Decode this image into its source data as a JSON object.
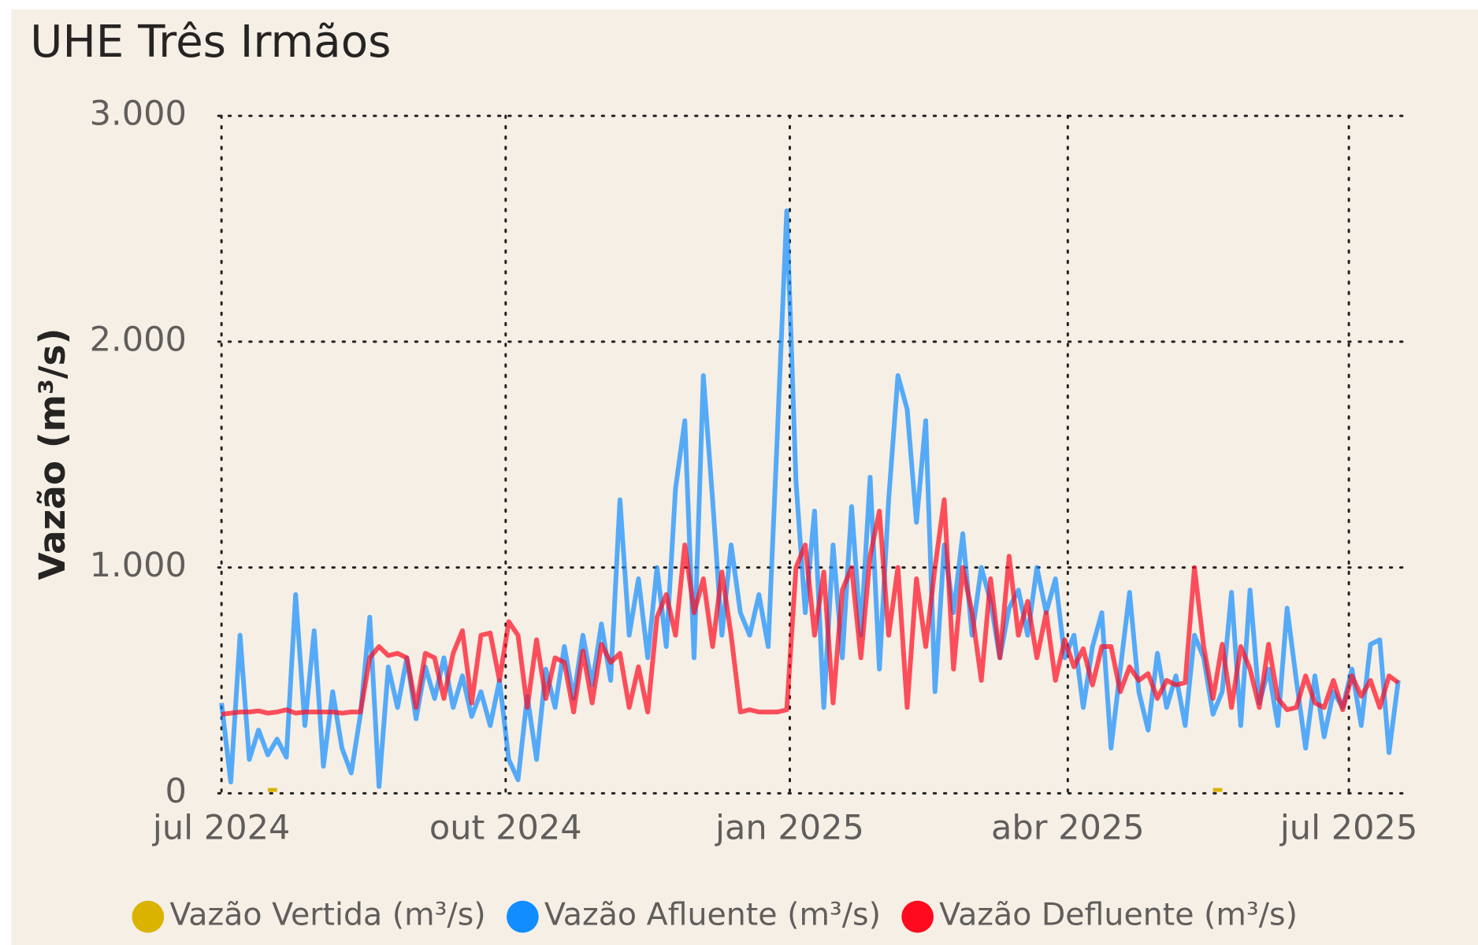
{
  "chart_data": {
    "type": "line",
    "title": "UHE Três Irmãos",
    "y_label": "Vazão (m³/s)",
    "x": [
      0,
      3,
      6,
      9,
      12,
      15,
      18,
      21,
      24,
      27,
      30,
      33,
      36,
      39,
      42,
      45,
      48,
      51,
      54,
      57,
      60,
      63,
      66,
      69,
      72,
      75,
      78,
      81,
      84,
      87,
      90,
      93,
      96,
      99,
      102,
      105,
      108,
      111,
      114,
      117,
      120,
      123,
      126,
      129,
      132,
      135,
      138,
      141,
      144,
      147,
      150,
      153,
      156,
      159,
      162,
      165,
      168,
      171,
      174,
      177,
      180,
      183,
      186,
      189,
      192,
      195,
      198,
      201,
      204,
      207,
      210,
      213,
      216,
      219,
      222,
      225,
      228,
      231,
      234,
      237,
      240,
      243,
      246,
      249,
      252,
      255,
      258,
      261,
      264,
      267,
      270,
      273,
      276,
      279,
      282,
      285,
      288,
      291,
      294,
      297,
      300,
      303,
      306,
      309,
      312,
      315,
      318,
      321,
      324,
      327,
      330,
      333,
      336,
      339,
      342,
      345,
      348,
      351,
      354,
      357,
      360,
      363,
      366,
      369,
      372,
      375,
      378,
      381
    ],
    "xlim": [
      -1,
      383
    ],
    "xticks": [
      {
        "value": 0,
        "label": "jul 2024"
      },
      {
        "value": 92,
        "label": "out 2024"
      },
      {
        "value": 184,
        "label": "jan 2025"
      },
      {
        "value": 274,
        "label": "abr 2025"
      },
      {
        "value": 365,
        "label": "jul 2025"
      }
    ],
    "ylim": [
      0,
      3000
    ],
    "yticks": [
      0,
      {
        "value": 1000,
        "label": "1.000"
      },
      {
        "value": 2000,
        "label": "2.000"
      },
      {
        "value": 3000,
        "label": "3.000"
      }
    ],
    "grid": true,
    "legend": "bottom",
    "series": [
      {
        "name": "Vazão Vertida (m³/s)",
        "color": "#D9B300",
        "values": [
          null,
          null,
          null,
          null,
          null,
          15,
          15,
          null,
          null,
          null,
          null,
          null,
          null,
          null,
          null,
          null,
          null,
          null,
          null,
          null,
          null,
          null,
          null,
          null,
          null,
          null,
          null,
          null,
          null,
          null,
          null,
          null,
          null,
          null,
          null,
          null,
          null,
          null,
          null,
          null,
          null,
          null,
          null,
          null,
          null,
          null,
          null,
          null,
          null,
          null,
          null,
          null,
          null,
          null,
          null,
          null,
          null,
          null,
          null,
          null,
          null,
          null,
          null,
          null,
          null,
          null,
          null,
          null,
          null,
          null,
          null,
          null,
          null,
          null,
          null,
          null,
          null,
          null,
          null,
          null,
          null,
          null,
          null,
          null,
          null,
          null,
          null,
          null,
          null,
          null,
          null,
          null,
          null,
          null,
          null,
          null,
          null,
          null,
          null,
          null,
          null,
          null,
          null,
          null,
          null,
          null,
          null,
          15,
          15,
          null,
          null,
          null,
          null,
          null,
          null,
          null,
          null,
          null,
          null,
          null,
          null,
          null,
          null,
          null,
          null,
          null,
          null,
          null
        ]
      },
      {
        "name": "Vazão Afluente (m³/s)",
        "color": "#118DFF",
        "values": [
          400,
          50,
          700,
          150,
          280,
          170,
          240,
          160,
          880,
          300,
          720,
          120,
          450,
          200,
          90,
          350,
          780,
          30,
          560,
          380,
          600,
          330,
          560,
          420,
          600,
          380,
          520,
          340,
          450,
          300,
          500,
          150,
          60,
          430,
          150,
          550,
          380,
          650,
          420,
          700,
          480,
          750,
          500,
          1300,
          700,
          950,
          600,
          1000,
          650,
          1350,
          1650,
          600,
          1850,
          1300,
          700,
          1100,
          800,
          700,
          880,
          650,
          1600,
          2580,
          1380,
          800,
          1250,
          380,
          1100,
          600,
          1270,
          700,
          1400,
          550,
          1300,
          1850,
          1700,
          1200,
          1650,
          450,
          1100,
          800,
          1150,
          700,
          1000,
          850,
          600,
          820,
          900,
          700,
          1000,
          800,
          950,
          600,
          700,
          380,
          650,
          800,
          200,
          550,
          890,
          450,
          280,
          620,
          380,
          520,
          300,
          700,
          600,
          350,
          450,
          890,
          300,
          900,
          400,
          550,
          300,
          820,
          500,
          200,
          520,
          250,
          450,
          380,
          550,
          300,
          660,
          680,
          180,
          500
        ]
      },
      {
        "name": "Vazão Defluente (m³/s)",
        "color": "#FF0A1E",
        "values": [
          350,
          355,
          360,
          360,
          365,
          355,
          360,
          370,
          355,
          360,
          360,
          360,
          360,
          355,
          360,
          360,
          600,
          650,
          610,
          620,
          600,
          380,
          620,
          600,
          420,
          620,
          720,
          400,
          700,
          710,
          500,
          760,
          700,
          380,
          680,
          420,
          600,
          580,
          360,
          630,
          400,
          660,
          580,
          620,
          380,
          560,
          360,
          780,
          880,
          700,
          1100,
          800,
          950,
          650,
          980,
          700,
          360,
          370,
          360,
          360,
          360,
          370,
          1000,
          1100,
          700,
          980,
          400,
          900,
          1000,
          600,
          1050,
          1250,
          700,
          1000,
          380,
          950,
          650,
          1000,
          1300,
          550,
          1000,
          800,
          500,
          950,
          600,
          1050,
          700,
          850,
          600,
          800,
          500,
          680,
          560,
          640,
          480,
          650,
          650,
          450,
          560,
          500,
          530,
          420,
          500,
          480,
          490,
          1000,
          650,
          420,
          660,
          380,
          650,
          550,
          380,
          660,
          420,
          370,
          380,
          520,
          400,
          380,
          500,
          370,
          520,
          430,
          500,
          380,
          520,
          490
        ]
      }
    ]
  }
}
